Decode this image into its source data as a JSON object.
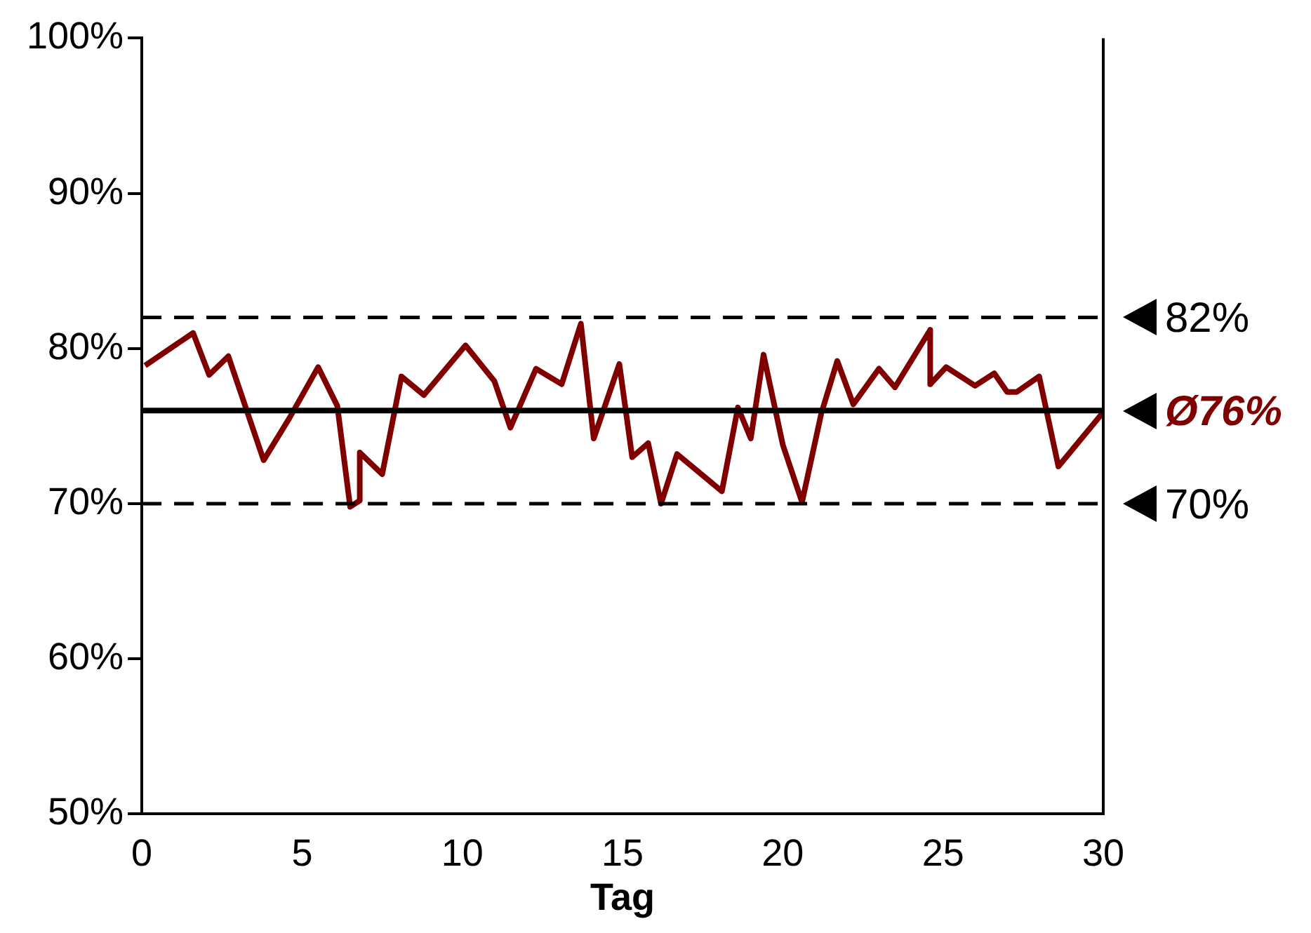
{
  "chart_data": {
    "type": "line",
    "xlabel": "Tag",
    "x": [
      0.1,
      1.6,
      2.1,
      2.7,
      3.8,
      4.6,
      5.5,
      6.1,
      6.5,
      6.8,
      6.8,
      7.5,
      8.1,
      8.8,
      10.1,
      11.0,
      11.5,
      12.3,
      13.1,
      13.7,
      14.1,
      14.9,
      15.3,
      15.8,
      16.2,
      16.7,
      18.1,
      18.6,
      19.0,
      19.4,
      20.0,
      20.6,
      21.2,
      21.7,
      22.2,
      23.0,
      23.5,
      24.6,
      24.6,
      25.1,
      26.0,
      26.6,
      27.0,
      27.3,
      28.0,
      28.6,
      30.0
    ],
    "series": [
      {
        "color": "#800000",
        "values": [
          78.9,
          81.0,
          78.3,
          79.5,
          72.8,
          75.5,
          78.8,
          76.3,
          69.8,
          70.2,
          73.3,
          71.9,
          78.2,
          77.0,
          80.2,
          77.9,
          74.9,
          78.7,
          77.7,
          81.6,
          74.2,
          79.0,
          73.0,
          73.9,
          70.0,
          73.2,
          70.8,
          76.2,
          74.2,
          79.6,
          73.8,
          70.1,
          75.8,
          79.2,
          76.4,
          78.7,
          77.5,
          81.2,
          77.7,
          78.8,
          77.6,
          78.4,
          77.2,
          77.2,
          78.2,
          72.4,
          75.9
        ]
      }
    ],
    "xlim": [
      0,
      30
    ],
    "xticks": [
      0,
      5,
      10,
      15,
      20,
      25,
      30
    ],
    "ylim": [
      50,
      100
    ],
    "yticks": [
      {
        "value": 50,
        "label": "50%"
      },
      {
        "value": 60,
        "label": "60%"
      },
      {
        "value": 70,
        "label": "70%"
      },
      {
        "value": 80,
        "label": "80%"
      },
      {
        "value": 90,
        "label": "90%"
      },
      {
        "value": 100,
        "label": "100%"
      }
    ],
    "ref_lines": [
      {
        "axis": "y",
        "value": 82,
        "label": "82%",
        "color": "#000000",
        "line_style": "dashed"
      },
      {
        "axis": "y",
        "value": 76,
        "label": "Ø76%",
        "color": "#000000",
        "line_style": "solid"
      },
      {
        "axis": "y",
        "value": 70,
        "label": "70%",
        "color": "#000000",
        "line_style": "dashed"
      }
    ],
    "grid": false,
    "legend": false,
    "marker": "none",
    "line_style": "solid"
  }
}
